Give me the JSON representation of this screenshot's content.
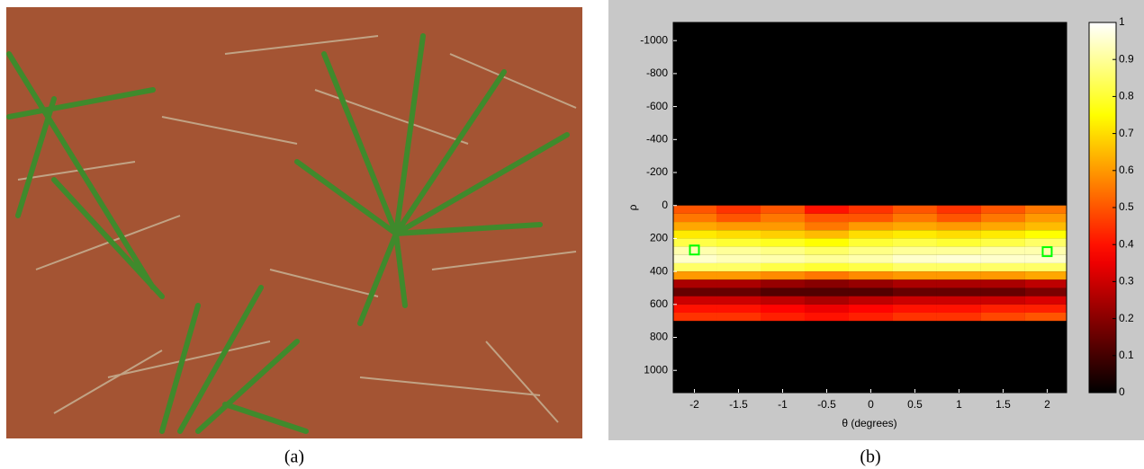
{
  "chart_data": {
    "type": "heatmap",
    "xlabel": "θ (degrees)",
    "ylabel": "ρ",
    "x": [
      -2,
      -1.5,
      -1,
      -0.5,
      0,
      0.5,
      1,
      1.5,
      2
    ],
    "y": [
      0,
      50,
      100,
      150,
      200,
      250,
      300,
      350,
      400,
      450,
      500,
      550,
      600,
      650
    ],
    "values": [
      [
        0.5,
        0.45,
        0.5,
        0.4,
        0.45,
        0.5,
        0.45,
        0.5,
        0.55
      ],
      [
        0.55,
        0.5,
        0.55,
        0.5,
        0.5,
        0.55,
        0.5,
        0.55,
        0.6
      ],
      [
        0.62,
        0.6,
        0.6,
        0.55,
        0.6,
        0.62,
        0.6,
        0.62,
        0.65
      ],
      [
        0.72,
        0.7,
        0.68,
        0.65,
        0.7,
        0.72,
        0.7,
        0.72,
        0.75
      ],
      [
        0.82,
        0.8,
        0.78,
        0.75,
        0.8,
        0.82,
        0.8,
        0.82,
        0.85
      ],
      [
        0.92,
        0.9,
        0.88,
        0.85,
        0.88,
        0.9,
        0.9,
        0.92,
        0.92
      ],
      [
        0.95,
        0.93,
        0.92,
        0.9,
        0.92,
        0.95,
        0.96,
        0.95,
        0.95
      ],
      [
        0.85,
        0.85,
        0.82,
        0.8,
        0.82,
        0.85,
        0.85,
        0.85,
        0.85
      ],
      [
        0.6,
        0.6,
        0.58,
        0.55,
        0.58,
        0.6,
        0.6,
        0.6,
        0.62
      ],
      [
        0.25,
        0.25,
        0.22,
        0.2,
        0.22,
        0.25,
        0.25,
        0.25,
        0.28
      ],
      [
        0.15,
        0.15,
        0.12,
        0.12,
        0.12,
        0.15,
        0.15,
        0.15,
        0.18
      ],
      [
        0.3,
        0.3,
        0.28,
        0.25,
        0.28,
        0.3,
        0.3,
        0.3,
        0.32
      ],
      [
        0.4,
        0.4,
        0.38,
        0.35,
        0.38,
        0.4,
        0.4,
        0.42,
        0.42
      ],
      [
        0.45,
        0.45,
        0.42,
        0.4,
        0.42,
        0.45,
        0.45,
        0.48,
        0.5
      ]
    ],
    "xlim": [
      -2.24,
      2.22
    ],
    "ylim": [
      -1110,
      1135
    ],
    "xticks": [
      -2,
      -1.5,
      -1,
      -0.5,
      0,
      0.5,
      1,
      1.5,
      2
    ],
    "yticks": [
      -1000,
      -800,
      -600,
      -400,
      -200,
      0,
      200,
      400,
      600,
      800,
      1000
    ],
    "colormap": "hot",
    "clim": [
      0,
      1
    ],
    "cticks": [
      0,
      0.1,
      0.2,
      0.3,
      0.4,
      0.5,
      0.6,
      0.7,
      0.8,
      0.9,
      1
    ],
    "markers": {
      "color": "#00ff00",
      "x": [
        -2,
        2
      ],
      "y": [
        270,
        280
      ]
    }
  },
  "captions": [
    "(a)",
    "(b)"
  ]
}
